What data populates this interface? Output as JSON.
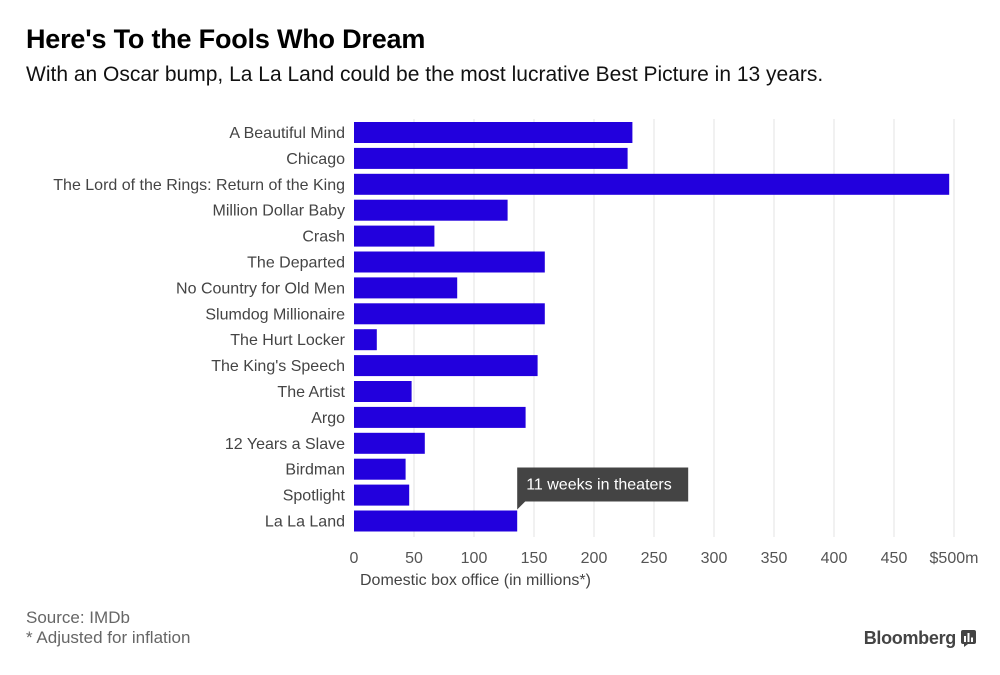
{
  "title": "Here's To the Fools Who Dream",
  "subtitle": "With an Oscar bump, La La Land could be the most lucrative Best Picture in 13 years.",
  "source": "Source: IMDb",
  "footnote": "* Adjusted for inflation",
  "brand": "Bloomberg",
  "colors": {
    "bar": "#2200dd",
    "grid": "#e3e3e3",
    "callout": "#444444"
  },
  "chart_data": {
    "type": "bar",
    "orientation": "horizontal",
    "categories": [
      "A Beautiful Mind",
      "Chicago",
      "The Lord of the Rings: Return of the King",
      "Million Dollar Baby",
      "Crash",
      "The Departed",
      "No Country for Old Men",
      "Slumdog Millionaire",
      "The Hurt Locker",
      "The King's Speech",
      "The Artist",
      "Argo",
      "12 Years a Slave",
      "Birdman",
      "Spotlight",
      "La La Land"
    ],
    "values": [
      232,
      228,
      496,
      128,
      67,
      159,
      86,
      159,
      19,
      153,
      48,
      143,
      59,
      43,
      46,
      136
    ],
    "xlim": [
      0,
      500
    ],
    "xticks": [
      0,
      50,
      100,
      150,
      200,
      250,
      300,
      350,
      400,
      450,
      500
    ],
    "xtick_labels": [
      "0",
      "50",
      "100",
      "150",
      "200",
      "250",
      "300",
      "350",
      "400",
      "450",
      "$500m"
    ],
    "xlabel": "Domestic box office (in millions*)",
    "ylabel": "",
    "grid": true,
    "annotation": {
      "category": "La La Land",
      "text": "11 weeks in theaters"
    }
  }
}
